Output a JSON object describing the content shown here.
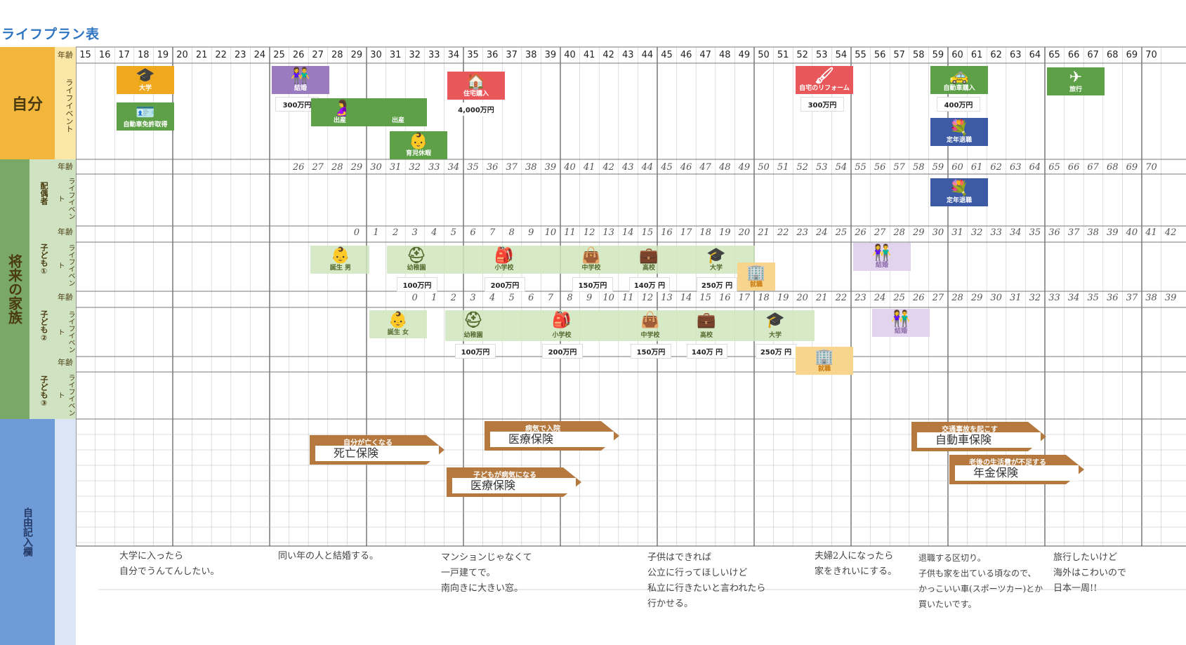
{
  "title": "ライフプラン表",
  "sections": {
    "self": "自分",
    "family": "将来の家族",
    "free": "自由記入欄"
  },
  "row_labels": {
    "age": "年齢",
    "life_event": "ライフイベント",
    "spouse": "配偶者",
    "child1": "子ども①",
    "child2": "子ども②",
    "child3": "子ども③"
  },
  "ages": [
    "15",
    "16",
    "17",
    "18",
    "19",
    "20",
    "21",
    "22",
    "23",
    "24",
    "25",
    "26",
    "27",
    "28",
    "29",
    "30",
    "31",
    "32",
    "33",
    "34",
    "35",
    "36",
    "37",
    "38",
    "39",
    "40",
    "41",
    "42",
    "43",
    "44",
    "45",
    "46",
    "47",
    "48",
    "49",
    "50",
    "51",
    "52",
    "53",
    "54",
    "55",
    "56",
    "57",
    "58",
    "59",
    "60",
    "61",
    "62",
    "63",
    "64",
    "65",
    "66",
    "67",
    "68",
    "69",
    "70"
  ],
  "spouse_ages": [
    "26",
    "27",
    "28",
    "29",
    "30",
    "31",
    "32",
    "33",
    "34",
    "35",
    "36",
    "37",
    "38",
    "39",
    "40",
    "41",
    "42",
    "43",
    "44",
    "45",
    "46",
    "47",
    "48",
    "49",
    "50",
    "51",
    "52",
    "53",
    "54",
    "55",
    "56",
    "57",
    "58",
    "59",
    "60",
    "61",
    "62",
    "63",
    "64",
    "65",
    "66",
    "67",
    "68",
    "69",
    "70"
  ],
  "child1_ages": [
    "0",
    "1",
    "2",
    "3",
    "4",
    "5",
    "6",
    "7",
    "8",
    "9",
    "10",
    "11",
    "12",
    "13",
    "14",
    "15",
    "16",
    "17",
    "18",
    "19",
    "20",
    "21",
    "22",
    "23",
    "24",
    "25",
    "26",
    "27",
    "28",
    "29",
    "30",
    "31",
    "32",
    "33",
    "34",
    "35",
    "36",
    "37",
    "38",
    "39",
    "40",
    "41",
    "42"
  ],
  "child2_ages": [
    "0",
    "1",
    "2",
    "3",
    "4",
    "5",
    "6",
    "7",
    "8",
    "9",
    "10",
    "11",
    "12",
    "13",
    "14",
    "15",
    "16",
    "17",
    "18",
    "19",
    "20",
    "21",
    "22",
    "23",
    "24",
    "25",
    "26",
    "27",
    "28",
    "29",
    "30",
    "31",
    "32",
    "33",
    "34",
    "35",
    "36",
    "37",
    "38",
    "39"
  ],
  "self_events": {
    "university": "大学",
    "license": "自動車免許取得",
    "marriage": "結婚",
    "marriage_cost": "300万円",
    "birth1": "出産",
    "birth2": "出産",
    "childcare_leave": "育児休暇",
    "house": "住宅購入",
    "house_cost": "4,000万円",
    "reform": "自宅のリフォーム",
    "reform_cost": "300万円",
    "car": "自動車購入",
    "car_cost": "400万円",
    "retire": "定年退職",
    "travel": "旅行"
  },
  "spouse_events": {
    "retire": "定年退職"
  },
  "child1_events": {
    "birth": "誕生 男",
    "kinder": "幼稚園",
    "kinder_cost": "100万円",
    "elem": "小学校",
    "elem_cost": "200万円",
    "junior": "中学校",
    "junior_cost": "150万円",
    "high": "高校",
    "high_cost": "140万 円",
    "univ": "大学",
    "univ_cost": "250万 円",
    "job": "就職",
    "marriage": "結婚"
  },
  "child2_events": {
    "birth": "誕生 女",
    "kinder": "幼稚園",
    "kinder_cost": "100万円",
    "elem": "小学校",
    "elem_cost": "200万円",
    "junior": "中学校",
    "junior_cost": "150万円",
    "high": "高校",
    "high_cost": "140万 円",
    "univ": "大学",
    "univ_cost": "250万 円",
    "job": "就職",
    "marriage": "結婚"
  },
  "insurance": [
    {
      "caption": "自分が亡くなる",
      "text": "死亡保険"
    },
    {
      "caption": "病気で入院",
      "text": "医療保険"
    },
    {
      "caption": "子どもが病気になる",
      "text": "医療保険"
    },
    {
      "caption": "交通事故を起こす",
      "text": "自動車保険"
    },
    {
      "caption": "老後の生活費が不足する",
      "text": "年金保険"
    }
  ],
  "memos": [
    "大学に入ったら\n自分でうんてんしたい。",
    "同い年の人と結婚する。",
    "マンションじゃなくて\n一戸建てで。\n南向きに大きい窓。",
    "子供はできれば\n公立に行ってほしいけど\n私立に行きたいと言われたら\n行かせる。",
    "夫婦2人になったら\n家をきれいにする。",
    "退職する区切り。\n子供も家を出ている頃なので、\nかっこいい車(スポーツカー)とか\n買いたいです。",
    "旅行したいけど\n海外はこわいので\n日本一周!!"
  ],
  "colors": {
    "self_band": "#f2b63c",
    "family_band": "#7aa866",
    "free_band": "#6f9bd8",
    "green": "#5da047",
    "purple": "#9a7bbf",
    "red": "#e8585a",
    "navy": "#3c5aa6",
    "brown": "#b5793f",
    "orange": "#f5b93a"
  }
}
